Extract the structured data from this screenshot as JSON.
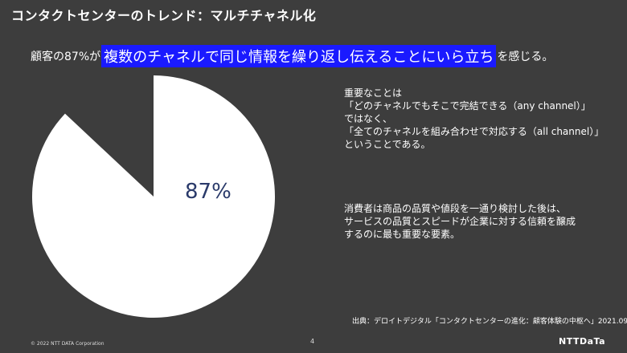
{
  "slide": {
    "title": "コンタクトセンターのトレンド：マルチチャネル化",
    "headline": {
      "prefix": "顧客の87%が",
      "highlight": "複数のチャネルで同じ情報を繰り返し伝えることにいら立ち",
      "suffix": "を感じる。"
    },
    "paragraph1": [
      "重要なことは",
      "「どのチャネルでもそこで完結できる（any channel）」",
      "ではなく、",
      "「全てのチャネルを組み合わせで対応する（all channel）」",
      "ということである。"
    ],
    "paragraph2": [
      "消費者は商品の品質や値段を一通り検討した後は、",
      "サービスの品質とスピードが企業に対する信頼を醸成",
      "するのに最も重要な要素。"
    ],
    "source": "出典：デロイトデジタル「コンタクトセンターの進化：顧客体験の中枢へ」2021.09",
    "footer": {
      "copyright": "© 2022 NTT DATA Corporation",
      "page_number": "4",
      "logo_text": "NTTDaTa"
    }
  },
  "colors": {
    "background": "#3d3d3d",
    "highlight": "#1a1aff",
    "pie_fill": "#ffffff",
    "pie_label": "#2a3a6a"
  },
  "chart_data": {
    "type": "pie",
    "slices": [
      {
        "value": 87,
        "label": "87%",
        "color": "#ffffff"
      },
      {
        "value": 13,
        "label": "",
        "color": "#3d3d3d"
      }
    ]
  }
}
